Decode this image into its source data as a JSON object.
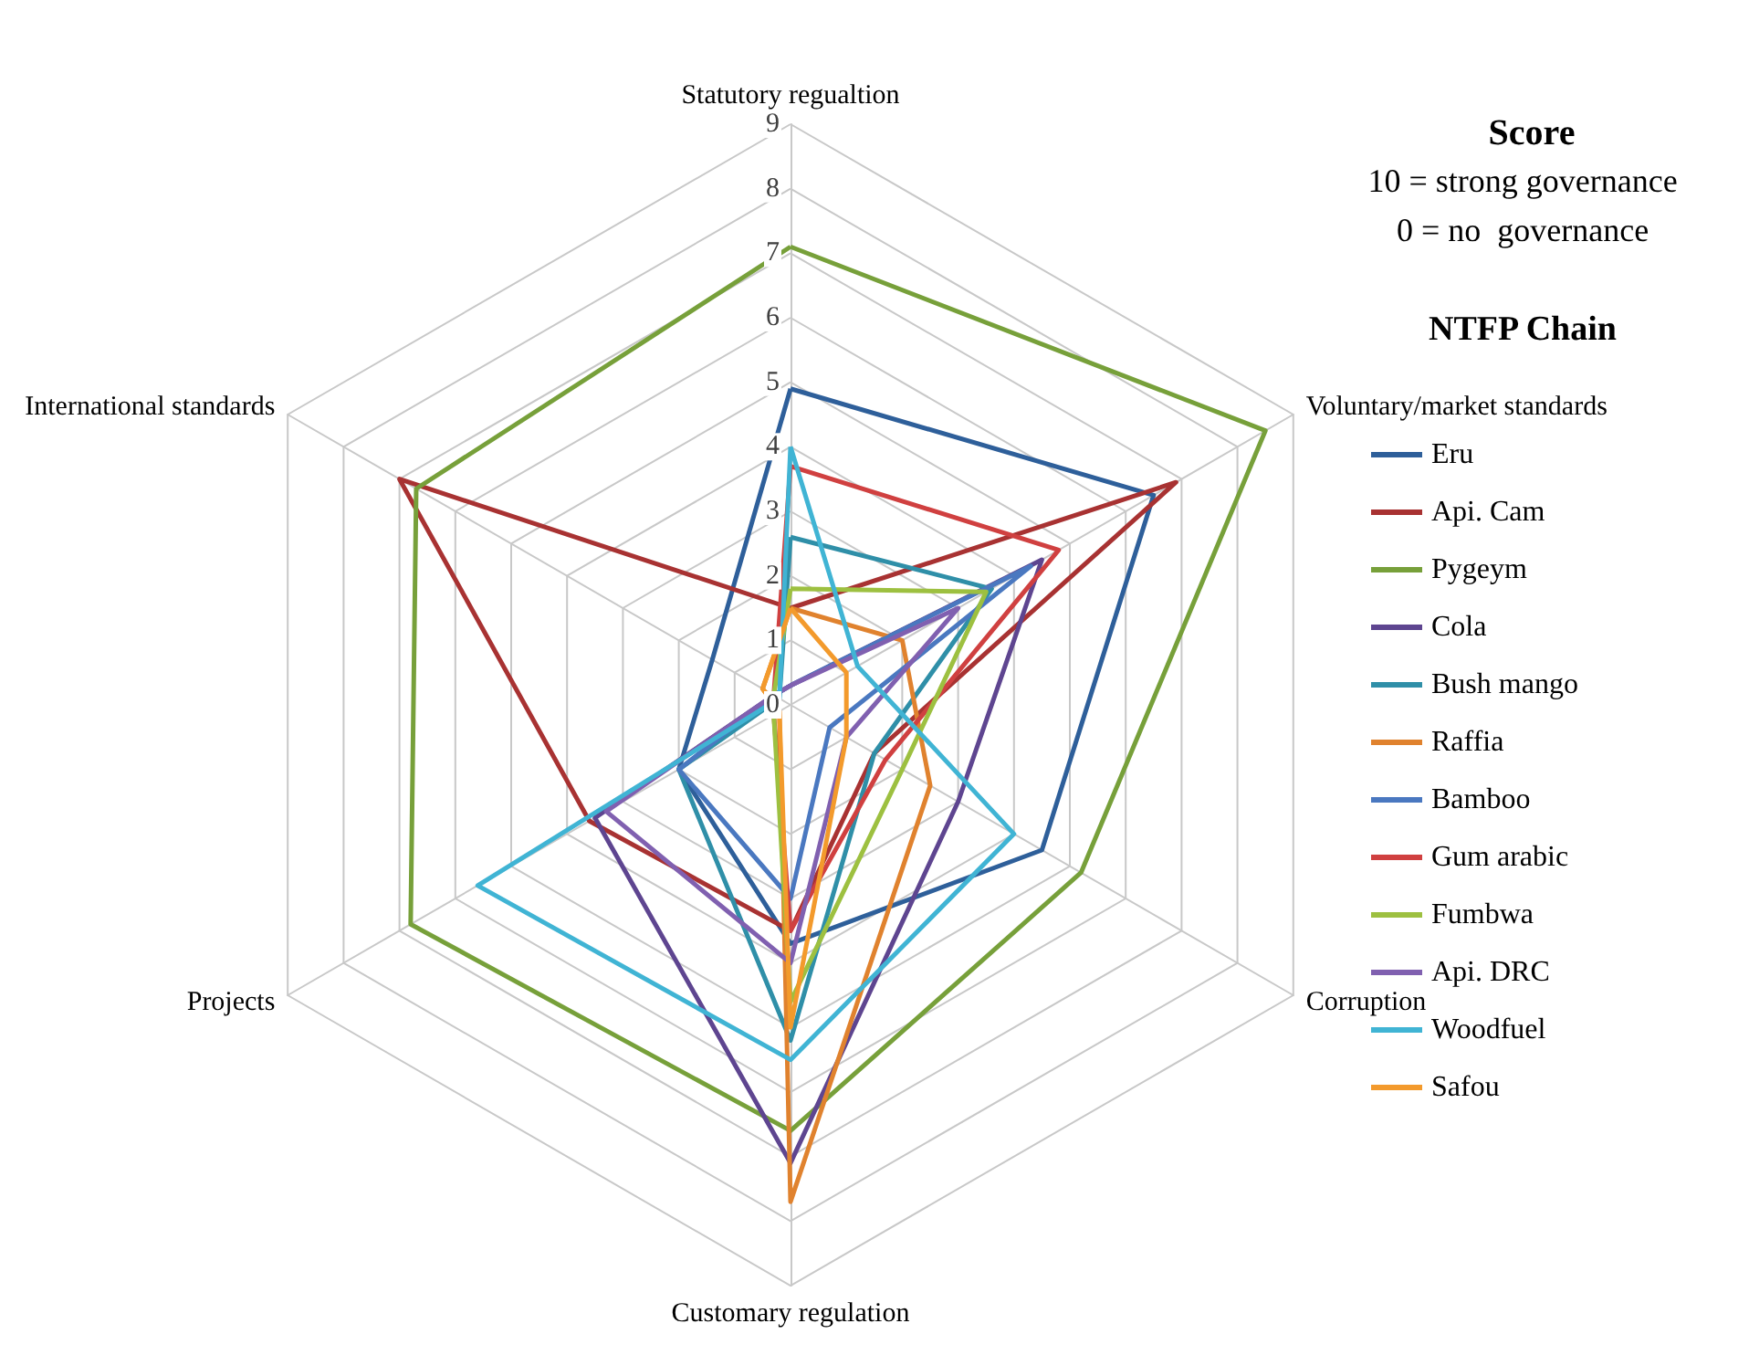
{
  "chart_data": {
    "type": "radar",
    "title": "Score",
    "annotations": [
      "10 = strong governance",
      "0 = no  governance"
    ],
    "legend_title": "NTFP Chain",
    "legend": "right",
    "grid": true,
    "marker": "none",
    "line_style": "solid",
    "categories": [
      "Statutory regualtion",
      "Voluntary/market standards",
      "Corruption",
      "Customary regulation",
      "Projects",
      "International standards"
    ],
    "ylim": [
      0,
      9
    ],
    "yticks": [
      0,
      1,
      2,
      3,
      4,
      5,
      6,
      7,
      8,
      9
    ],
    "series": [
      {
        "name": "Eru",
        "color": "#2e5f9a",
        "values": [
          4.9,
          6.5,
          4.5,
          3.7,
          2.0,
          1.4
        ]
      },
      {
        "name": "Api. Cam",
        "color": "#a83232",
        "values": [
          1.5,
          6.9,
          1.5,
          3.5,
          3.6,
          7.0
        ]
      },
      {
        "name": "Pygeym",
        "color": "#77a03a",
        "values": [
          7.1,
          8.5,
          5.2,
          6.6,
          6.8,
          6.7
        ]
      },
      {
        "name": "Cola",
        "color": "#5e4590",
        "values": [
          0.3,
          4.5,
          3.0,
          7.1,
          3.5,
          0.3
        ]
      },
      {
        "name": "Bush mango",
        "color": "#2f8fa8",
        "values": [
          2.6,
          3.6,
          1.5,
          5.2,
          2.0,
          0.2
        ]
      },
      {
        "name": "Raffia",
        "color": "#e0822e",
        "values": [
          1.5,
          2.0,
          2.5,
          7.7,
          0.2,
          0.5
        ]
      },
      {
        "name": "Bamboo",
        "color": "#4a78c0",
        "values": [
          0.3,
          4.3,
          0.7,
          3.0,
          2.0,
          0.3
        ]
      },
      {
        "name": "Gum arabic",
        "color": "#d04040",
        "values": [
          3.7,
          4.8,
          1.7,
          3.5,
          0.3,
          0.3
        ]
      },
      {
        "name": "Fumbwa",
        "color": "#9dc040",
        "values": [
          1.8,
          3.5,
          2.0,
          4.6,
          0.3,
          0.3
        ]
      },
      {
        "name": "Api. DRC",
        "color": "#8060b0",
        "values": [
          0.3,
          3.0,
          1.0,
          4.0,
          3.3,
          0.3
        ]
      },
      {
        "name": "Woodfuel",
        "color": "#40b4d4",
        "values": [
          4.0,
          1.2,
          4.0,
          5.5,
          5.6,
          0.2
        ]
      },
      {
        "name": "Safou",
        "color": "#f39a2c",
        "values": [
          1.5,
          1.0,
          1.0,
          5.0,
          0.2,
          0.5
        ]
      }
    ]
  }
}
